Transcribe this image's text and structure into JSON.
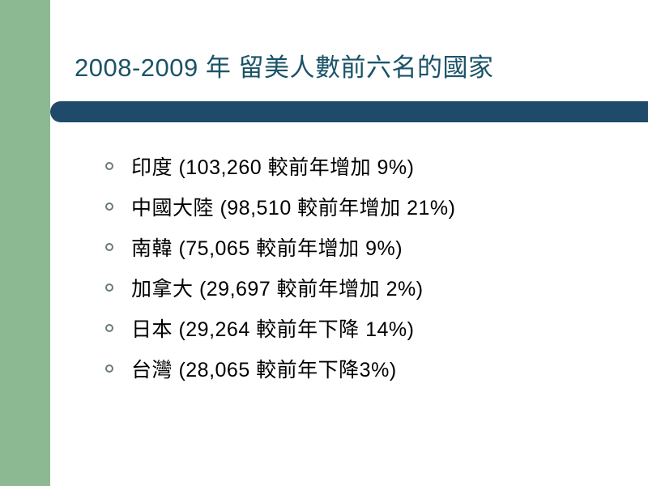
{
  "slide": {
    "title": "2008-2009 年  留美人數前六名的國家",
    "title_color": "#1a5368",
    "title_fontsize": 31,
    "sidebar_color": "#8db992",
    "underline_color": "#204a6a",
    "background_color": "#ffffff",
    "bullet_border_color": "#6a7a7a",
    "text_color": "#000000",
    "item_fontsize": 25,
    "items": [
      {
        "text": "印度 (103,260 較前年增加 9%)"
      },
      {
        "text": "中國大陸 (98,510 較前年增加 21%)"
      },
      {
        "text": "南韓 (75,065 較前年增加 9%)"
      },
      {
        "text": "加拿大 (29,697 較前年增加 2%)"
      },
      {
        "text": "日本 (29,264 較前年下降 14%)"
      },
      {
        "text": "台灣 (28,065 較前年下降3%)"
      }
    ]
  }
}
